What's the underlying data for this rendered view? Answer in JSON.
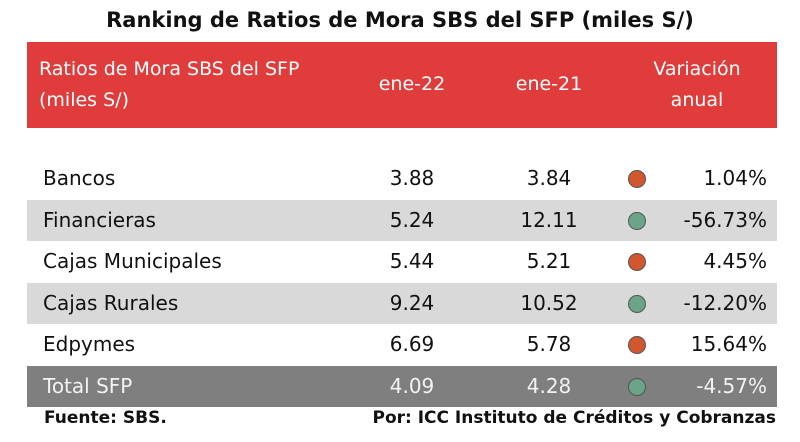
{
  "title": "Ranking de Ratios de Mora SBS del SFP (miles S/)",
  "header": {
    "col1": "Ratios de Mora SBS del SFP (miles S/)",
    "col2": "ene-22",
    "col3": "ene-21",
    "col4": "Variación anual"
  },
  "rows": [
    {
      "name": "Bancos",
      "ene22": "3.88",
      "ene21": "3.84",
      "indicator": "red",
      "variation": "1.04%"
    },
    {
      "name": "Financieras",
      "ene22": "5.24",
      "ene21": "12.11",
      "indicator": "green",
      "variation": "-56.73%"
    },
    {
      "name": "Cajas Municipales",
      "ene22": "5.44",
      "ene21": "5.21",
      "indicator": "red",
      "variation": "4.45%"
    },
    {
      "name": "Cajas Rurales",
      "ene22": "9.24",
      "ene21": "10.52",
      "indicator": "green",
      "variation": "-12.20%"
    },
    {
      "name": "Edpymes",
      "ene22": "6.69",
      "ene21": "5.78",
      "indicator": "red",
      "variation": "15.64%"
    },
    {
      "name": "Total SFP",
      "ene22": "4.09",
      "ene21": "4.28",
      "indicator": "green",
      "variation": "-4.57%"
    }
  ],
  "colors": {
    "header_bg": "#e03c3c",
    "alt_row_bg": "#d9d9d9",
    "total_row_bg": "#7f7f7f",
    "indicator_red": "#d2572e",
    "indicator_green": "#6aa587"
  },
  "footer": {
    "source": "Fuente: SBS.",
    "credit": "Por: ICC Instituto de Créditos y Cobranzas"
  }
}
